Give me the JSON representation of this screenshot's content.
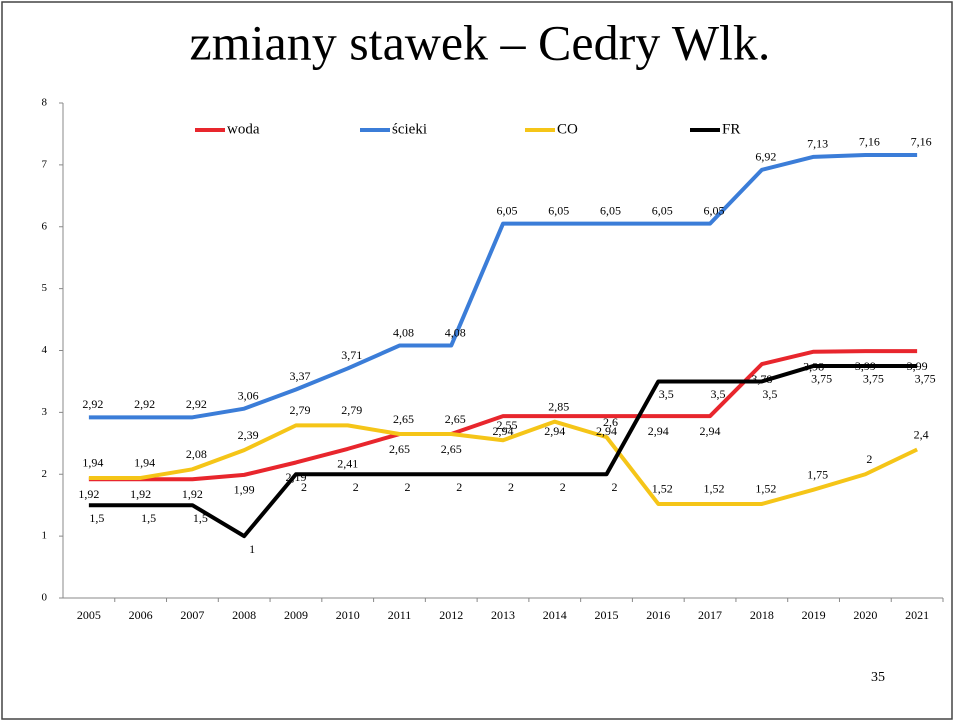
{
  "chart_data": {
    "type": "line",
    "title": "zmiany stawek – Cedry Wlk.",
    "page_number": "35",
    "categories": [
      "2005",
      "2006",
      "2007",
      "2008",
      "2009",
      "2010",
      "2011",
      "2012",
      "2013",
      "2014",
      "2015",
      "2016",
      "2017",
      "2018",
      "2019",
      "2020",
      "2021"
    ],
    "ylim": [
      0,
      8
    ],
    "yticks": [
      0,
      1,
      2,
      3,
      4,
      5,
      6,
      7,
      8
    ],
    "legend": "top",
    "series": [
      {
        "name": "woda",
        "color": "#e8262d",
        "values": [
          1.92,
          1.92,
          1.92,
          1.99,
          2.19,
          2.41,
          2.65,
          2.65,
          2.94,
          2.94,
          2.94,
          2.94,
          2.94,
          3.78,
          3.98,
          3.99,
          3.99
        ],
        "value_labels": [
          "1,92",
          "1,92",
          "1,92",
          "1,99",
          "2,19",
          "2,41",
          "2,65",
          "2,65",
          "2,94",
          "2,94",
          "2,94",
          "2,94",
          "2,94",
          "3,78",
          "3,98",
          "3,99",
          "3,99"
        ]
      },
      {
        "name": "ścieki",
        "color": "#3b7dd8",
        "values": [
          2.92,
          2.92,
          2.92,
          3.06,
          3.37,
          3.71,
          4.08,
          4.08,
          6.05,
          6.05,
          6.05,
          6.05,
          6.05,
          6.92,
          7.13,
          7.16,
          7.16
        ],
        "value_labels": [
          "2,92",
          "2,92",
          "2,92",
          "3,06",
          "3,37",
          "3,71",
          "4,08",
          "4,08",
          "6,05",
          "6,05",
          "6,05",
          "6,05",
          "6,05",
          "6,92",
          "7,13",
          "7,16",
          "7,16"
        ]
      },
      {
        "name": "CO",
        "color": "#f5c518",
        "values": [
          1.94,
          1.94,
          2.08,
          2.39,
          2.79,
          2.79,
          2.65,
          2.65,
          2.55,
          2.85,
          2.6,
          1.52,
          1.52,
          1.52,
          1.75,
          2,
          2.4
        ],
        "value_labels": [
          "1,94",
          "1,94",
          "2,08",
          "2,39",
          "2,79",
          "2,79",
          "2,65",
          "2,65",
          "2,55",
          "2,85",
          "2,6",
          "1,52",
          "1,52",
          "1,52",
          "1,75",
          "2",
          "2,4"
        ]
      },
      {
        "name": "FR",
        "color": "#000000",
        "values": [
          1.5,
          1.5,
          1.5,
          1,
          2,
          2,
          2,
          2,
          2,
          2,
          2,
          3.5,
          3.5,
          3.5,
          3.75,
          3.75,
          3.75
        ],
        "value_labels": [
          "1,5",
          "1,5",
          "1,5",
          "1",
          "2",
          "2",
          "2",
          "2",
          "2",
          "2",
          "2",
          "3,5",
          "3,5",
          "3,5",
          "3,75",
          "3,75",
          "3,75"
        ]
      }
    ]
  }
}
